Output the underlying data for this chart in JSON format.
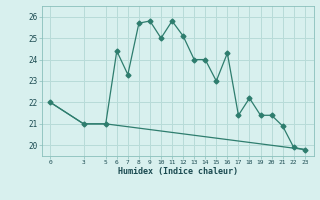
{
  "xlabel": "Humidex (Indice chaleur)",
  "line1_x": [
    0,
    3,
    5,
    6,
    7,
    8,
    9,
    10,
    11,
    12,
    13,
    14,
    15,
    16,
    17,
    18,
    19,
    20,
    21,
    22,
    23
  ],
  "line1_y": [
    22.0,
    21.0,
    21.0,
    24.4,
    23.3,
    25.7,
    25.8,
    25.0,
    25.8,
    25.1,
    24.0,
    24.0,
    23.0,
    24.3,
    21.4,
    22.2,
    21.4,
    21.4,
    20.9,
    19.9,
    19.8
  ],
  "line2_x": [
    0,
    3,
    5,
    23
  ],
  "line2_y": [
    22.0,
    21.0,
    21.0,
    19.8
  ],
  "line_color": "#2e7d6e",
  "bg_color": "#d8f0ee",
  "grid_color": "#b8dbd8",
  "ylim_min": 19.5,
  "ylim_max": 26.5,
  "yticks": [
    20,
    21,
    22,
    23,
    24,
    25,
    26
  ],
  "xticks": [
    0,
    3,
    5,
    6,
    7,
    8,
    9,
    10,
    11,
    12,
    13,
    14,
    15,
    16,
    17,
    18,
    19,
    20,
    21,
    22,
    23
  ],
  "marker": "D",
  "markersize": 2.5,
  "linewidth": 0.9
}
